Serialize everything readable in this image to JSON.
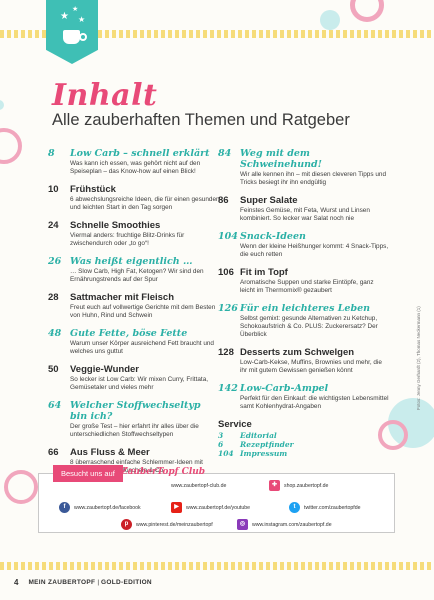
{
  "title": "Inhalt",
  "subtitle": "Alle zauberhaften Themen und Ratgeber",
  "left_column": [
    {
      "page": "8",
      "head": "Low Carb – schnell erklärt",
      "desc": "Was kann ich essen, was gehört nicht auf den Speiseplan – das Know-how auf einen Blick!",
      "style": "script"
    },
    {
      "page": "10",
      "head": "Frühstück",
      "desc": "6 abwechslungsreiche Ideen, die für einen gesunden und leichten Start in den Tag sorgen",
      "style": "bold"
    },
    {
      "page": "24",
      "head": "Schnelle Smoothies",
      "desc": "Viermal anders: fruchtige Blitz-Drinks für zwischendurch oder „to go“!",
      "style": "bold"
    },
    {
      "page": "26",
      "head": "Was heißt eigentlich …",
      "desc": "… Slow Carb, High Fat, Ketogen? Wir sind den Ernährungstrends auf der Spur",
      "style": "script"
    },
    {
      "page": "28",
      "head": "Sattmacher mit Fleisch",
      "desc": "Freut euch auf vollwertige Gerichte mit dem Besten von Huhn, Rind und Schwein",
      "style": "bold"
    },
    {
      "page": "48",
      "head": "Gute Fette, böse Fette",
      "desc": "Warum unser Körper ausreichend Fett braucht und welches uns guttut",
      "style": "script"
    },
    {
      "page": "50",
      "head": "Veggie-Wunder",
      "desc": "So lecker ist Low Carb: Wir mixen Curry, Frittata, Gemüsetaler und vieles mehr",
      "style": "bold"
    },
    {
      "page": "64",
      "head": "Welcher Stoffwechseltyp bin ich?",
      "desc": "Der große Test – hier erfahrt ihr alles über die unterschiedlichen Stoffwechseltypen",
      "style": "script"
    },
    {
      "page": "66",
      "head": "Aus Fluss & Meer",
      "desc": "8 überraschend einfache Schlemmer-Ideen mit Saibling, Zander, Muscheln & Co.",
      "style": "bold"
    }
  ],
  "right_column": [
    {
      "page": "84",
      "head": "Weg mit dem Schweinehund!",
      "desc": "Wir alle kennen ihn – mit diesen cleveren Tipps und Tricks besiegt ihr ihn endgültig",
      "style": "script"
    },
    {
      "page": "86",
      "head": "Super Salate",
      "desc": "Feinstes Gemüse, mit Feta, Wurst und Linsen kombiniert. So lecker war Salat noch nie",
      "style": "bold"
    },
    {
      "page": "104",
      "head": "Snack-Ideen",
      "desc": "Wenn der kleine Heißhunger kommt: 4 Snack-Tipps, die euch retten",
      "style": "script"
    },
    {
      "page": "106",
      "head": "Fit im Topf",
      "desc": "Aromatische Suppen und starke Eintöpfe, ganz leicht im Thermomix® gezaubert",
      "style": "bold"
    },
    {
      "page": "126",
      "head": "Für ein leichteres Leben",
      "desc": "Selbst gemixt: gesunde Alternativen zu Ketchup, Schokoaufstrich & Co. PLUS: Zuckerersatz? Der Überblick",
      "style": "script"
    },
    {
      "page": "128",
      "head": "Desserts zum Schwelgen",
      "desc": "Low-Carb-Kekse, Muffins, Brownies und mehr, die ihr mit gutem Gewissen genießen könnt",
      "style": "bold"
    },
    {
      "page": "142",
      "head": "Low-Carb-Ampel",
      "desc": "Perfekt für den Einkauf: die wichtigsten Lebensmittel samt Kohlenhydrat-Angaben",
      "style": "script"
    }
  ],
  "service": {
    "heading": "Service",
    "items": [
      {
        "page": "3",
        "label": "Editorial"
      },
      {
        "page": "6",
        "label": "Rezeptfinder"
      },
      {
        "page": "104",
        "label": "Impressum"
      }
    ]
  },
  "social": {
    "tag": "Besucht uns auf",
    "club": "ZauberTopf Club",
    "club_url": "www.zaubertopf-club.de",
    "shop": "shop.zaubertopf.de",
    "facebook": "www.zaubertopf.de/facebook",
    "youtube": "www.zaubertopf.de/youtube",
    "twitter": "twitter.com/zaubertopfde",
    "pinterest": "www.pinterest.de/meinzaubertopf",
    "instagram": "www.instagram.com/zaubertopf.de"
  },
  "credit": "Fotos: Jenny Gerhardt (2), Thomas Neckermann (1)",
  "footer": {
    "page_number": "4",
    "magazine": "MEIN ZAUBERTOPF",
    "separator": "|",
    "edition": "GOLD-EDITION"
  },
  "colors": {
    "accent_pink": "#e84a78",
    "accent_teal": "#2bb0a6",
    "badge": "#3fbfb5",
    "stripe": "#f6dc7a"
  }
}
